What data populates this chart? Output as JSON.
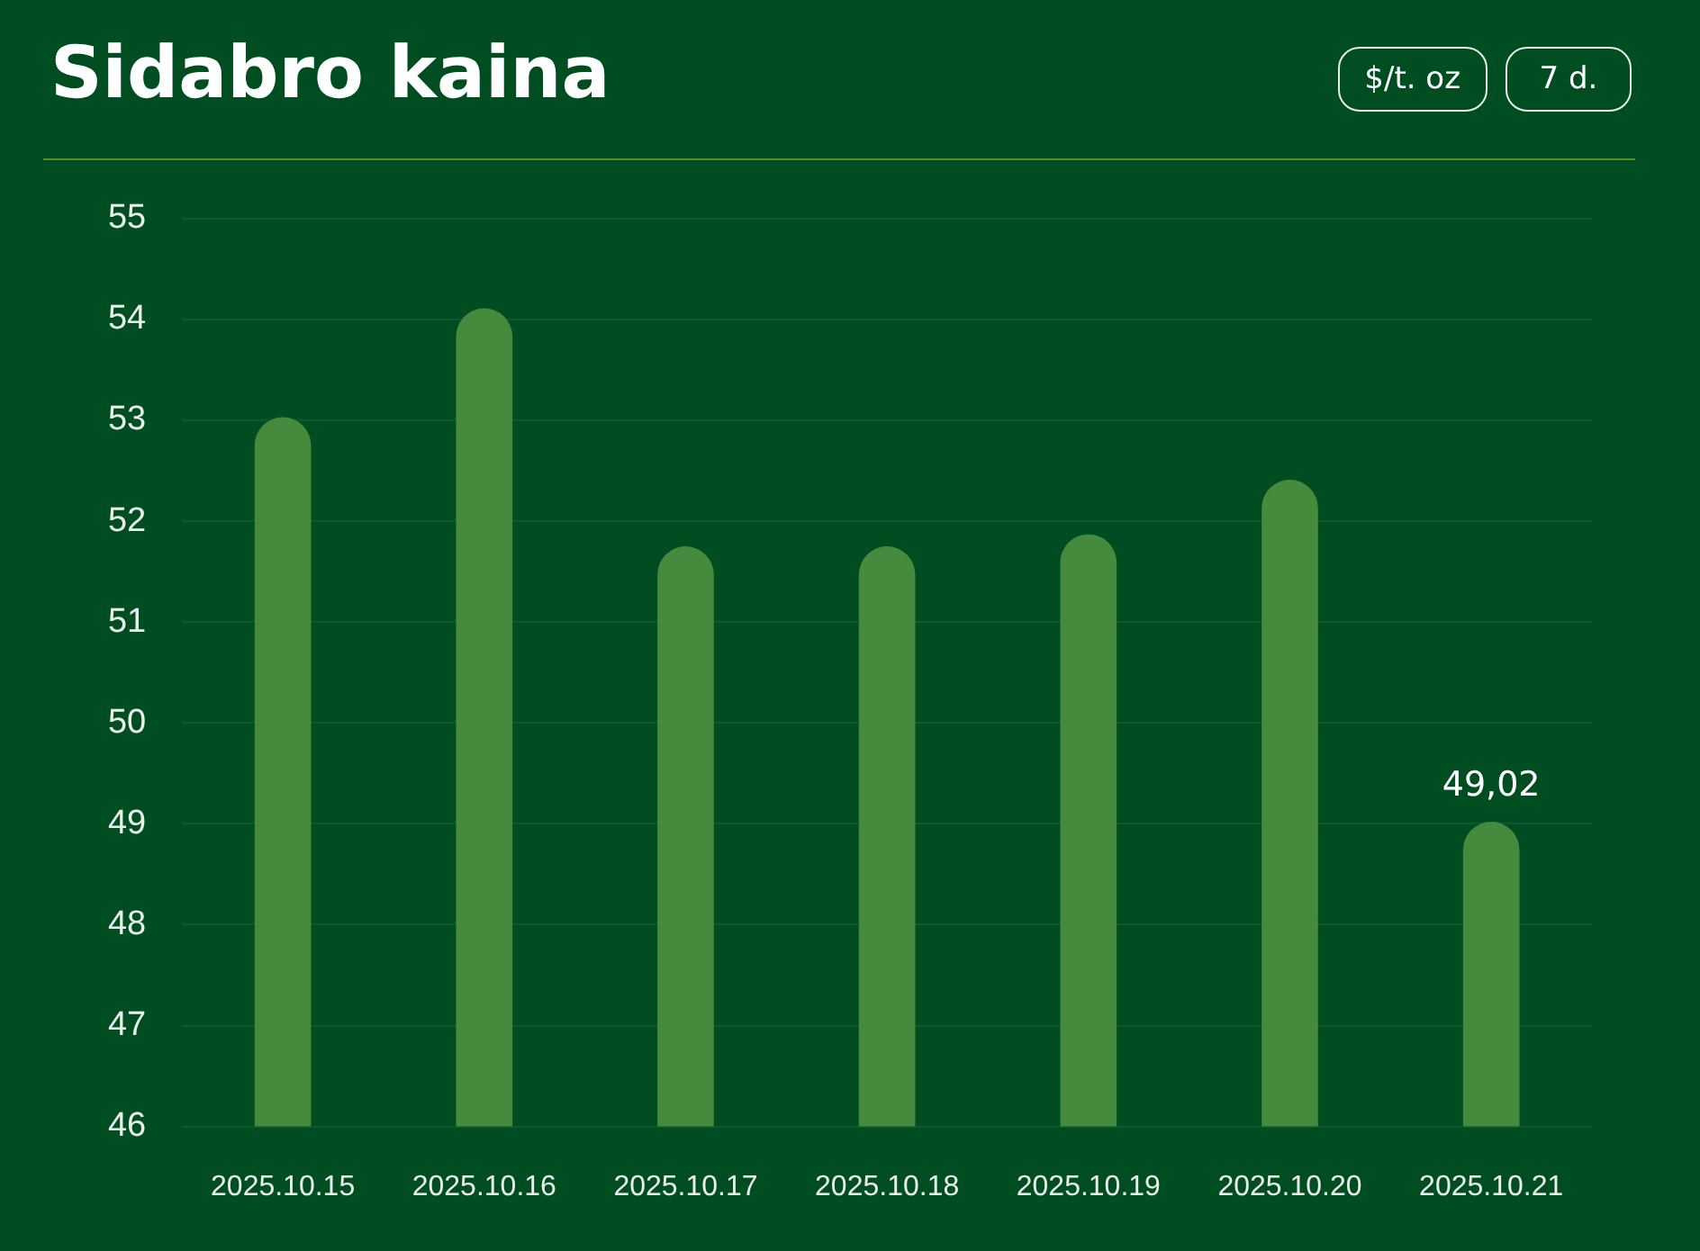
{
  "chart_data": {
    "type": "bar",
    "title": "Sidabro kaina",
    "categories": [
      "2025.10.15",
      "2025.10.16",
      "2025.10.17",
      "2025.10.18",
      "2025.10.19",
      "2025.10.20",
      "2025.10.21"
    ],
    "values": [
      53.03,
      54.11,
      51.75,
      51.75,
      51.87,
      52.41,
      49.02
    ],
    "value_labels": [
      null,
      null,
      null,
      null,
      null,
      null,
      "49,02"
    ],
    "color": "#468a3e",
    "ylim": [
      46,
      55
    ],
    "yticks": [
      46,
      47,
      48,
      49,
      50,
      51,
      52,
      53,
      54,
      55
    ],
    "grid": "y",
    "legend": false,
    "annotations": [
      "$/t. oz",
      "7 d."
    ]
  }
}
